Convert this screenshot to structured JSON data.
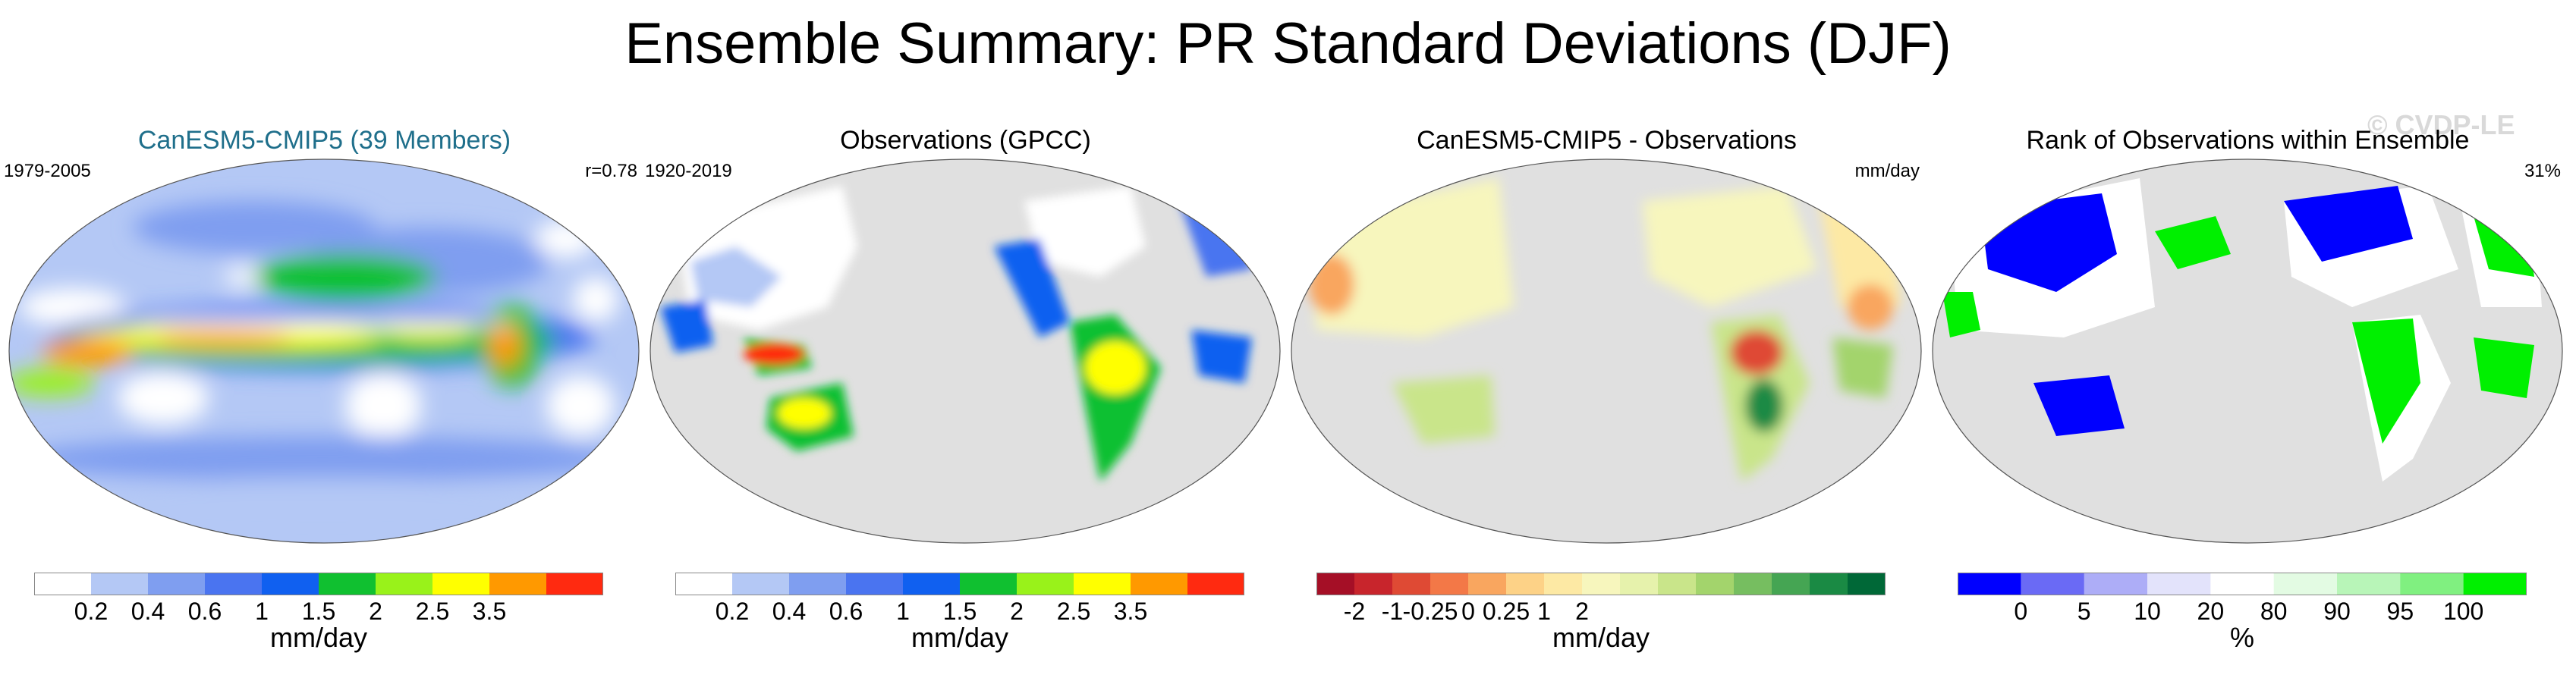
{
  "title": "Ensemble Summary: PR Standard Deviations (DJF)",
  "watermark": "© CVDP-LE",
  "panels": [
    {
      "title": "CanESM5-CMIP5 (39 Members)",
      "title_color": "#1f6f8b",
      "left_label": "1979-2005",
      "right_label": "r=0.78",
      "units": "mm/day",
      "colors": [
        "#ffffff",
        "#b4c8f5",
        "#7f9ef0",
        "#4a74f0",
        "#1060f0",
        "#10c030",
        "#99f21a",
        "#ffff00",
        "#ff9900",
        "#ff2a10"
      ],
      "ticks": [
        "0.2",
        "0.4",
        "0.6",
        "1",
        "1.5",
        "2",
        "2.5",
        "3.5"
      ],
      "kind": "model"
    },
    {
      "title": "Observations (GPCC)",
      "title_color": "#000000",
      "left_label": "1920-2019",
      "right_label": "",
      "units": "mm/day",
      "colors": [
        "#ffffff",
        "#b4c8f5",
        "#7f9ef0",
        "#4a74f0",
        "#1060f0",
        "#10c030",
        "#99f21a",
        "#ffff00",
        "#ff9900",
        "#ff2a10"
      ],
      "ticks": [
        "0.2",
        "0.4",
        "0.6",
        "1",
        "1.5",
        "2",
        "2.5",
        "3.5"
      ],
      "kind": "obs"
    },
    {
      "title": "CanESM5-CMIP5 - Observations",
      "title_color": "#000000",
      "left_label": "",
      "right_label": "mm/day",
      "units": "mm/day",
      "colors": [
        "#a50f26",
        "#c8252c",
        "#df4a34",
        "#f37847",
        "#f9a65f",
        "#fdd287",
        "#fde9a4",
        "#f7f6bd",
        "#e6f2ac",
        "#c9e58a",
        "#a3d46c",
        "#76be60",
        "#45a553",
        "#1a8a44",
        "#006837"
      ],
      "ticks": [
        "-2",
        "-1",
        "-0.25",
        "0",
        "0.25",
        "1",
        "2"
      ],
      "kind": "diff"
    },
    {
      "title": "Rank of Observations within Ensemble",
      "title_color": "#000000",
      "left_label": "",
      "right_label": "31%",
      "units": "%",
      "colors": [
        "#0000ff",
        "#6a6af5",
        "#adadf7",
        "#e3e3fb",
        "#ffffff",
        "#e3fbe3",
        "#b8f5b8",
        "#80f080",
        "#00f000"
      ],
      "ticks": [
        "0",
        "5",
        "10",
        "20",
        "80",
        "90",
        "95",
        "100"
      ],
      "kind": "rank"
    }
  ]
}
